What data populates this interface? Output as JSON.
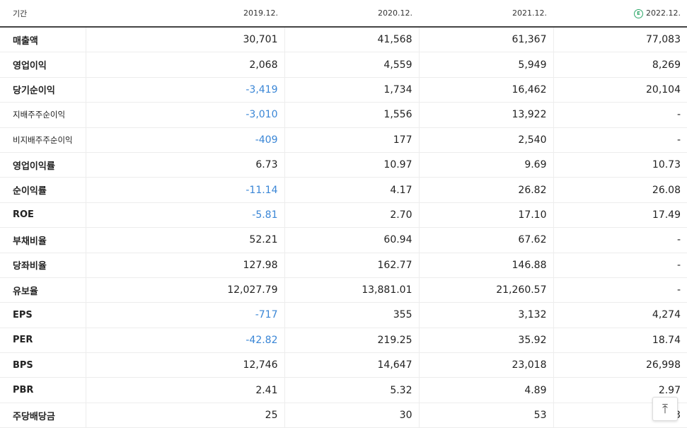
{
  "table": {
    "header": {
      "label": "기간",
      "periods": [
        "2019.12.",
        "2020.12.",
        "2021.12.",
        "2022.12."
      ],
      "estimate_mark": "E"
    },
    "rows": [
      {
        "label": "매출액",
        "values": [
          "30,701",
          "41,568",
          "61,367",
          "77,083"
        ]
      },
      {
        "label": "영업이익",
        "values": [
          "2,068",
          "4,559",
          "5,949",
          "8,269"
        ]
      },
      {
        "label": "당기순이익",
        "values": [
          "-3,419",
          "1,734",
          "16,462",
          "20,104"
        ]
      },
      {
        "label": "지배주주순이익",
        "values": [
          "-3,010",
          "1,556",
          "13,922",
          "-"
        ]
      },
      {
        "label": "비지배주주순이익",
        "values": [
          "-409",
          "177",
          "2,540",
          "-"
        ]
      },
      {
        "label": "영업이익률",
        "values": [
          "6.73",
          "10.97",
          "9.69",
          "10.73"
        ]
      },
      {
        "label": "순이익률",
        "values": [
          "-11.14",
          "4.17",
          "26.82",
          "26.08"
        ]
      },
      {
        "label": "ROE",
        "values": [
          "-5.81",
          "2.70",
          "17.10",
          "17.49"
        ]
      },
      {
        "label": "부채비율",
        "values": [
          "52.21",
          "60.94",
          "67.62",
          "-"
        ]
      },
      {
        "label": "당좌비율",
        "values": [
          "127.98",
          "162.77",
          "146.88",
          "-"
        ]
      },
      {
        "label": "유보율",
        "values": [
          "12,027.79",
          "13,881.01",
          "21,260.57",
          "-"
        ]
      },
      {
        "label": "EPS",
        "values": [
          "-717",
          "355",
          "3,132",
          "4,274"
        ]
      },
      {
        "label": "PER",
        "values": [
          "-42.82",
          "219.25",
          "35.92",
          "18.74"
        ]
      },
      {
        "label": "BPS",
        "values": [
          "12,746",
          "14,647",
          "23,018",
          "26,998"
        ]
      },
      {
        "label": "PBR",
        "values": [
          "2.41",
          "5.32",
          "4.89",
          "2.97"
        ]
      },
      {
        "label": "주당배당금",
        "values": [
          "25",
          "30",
          "53",
          "3"
        ]
      }
    ]
  },
  "colors": {
    "negative": "#3a86d6",
    "estimate": "#2ea86a"
  },
  "top_button": {
    "icon": "arrow-up-to-top-icon",
    "glyph": "⤒"
  }
}
